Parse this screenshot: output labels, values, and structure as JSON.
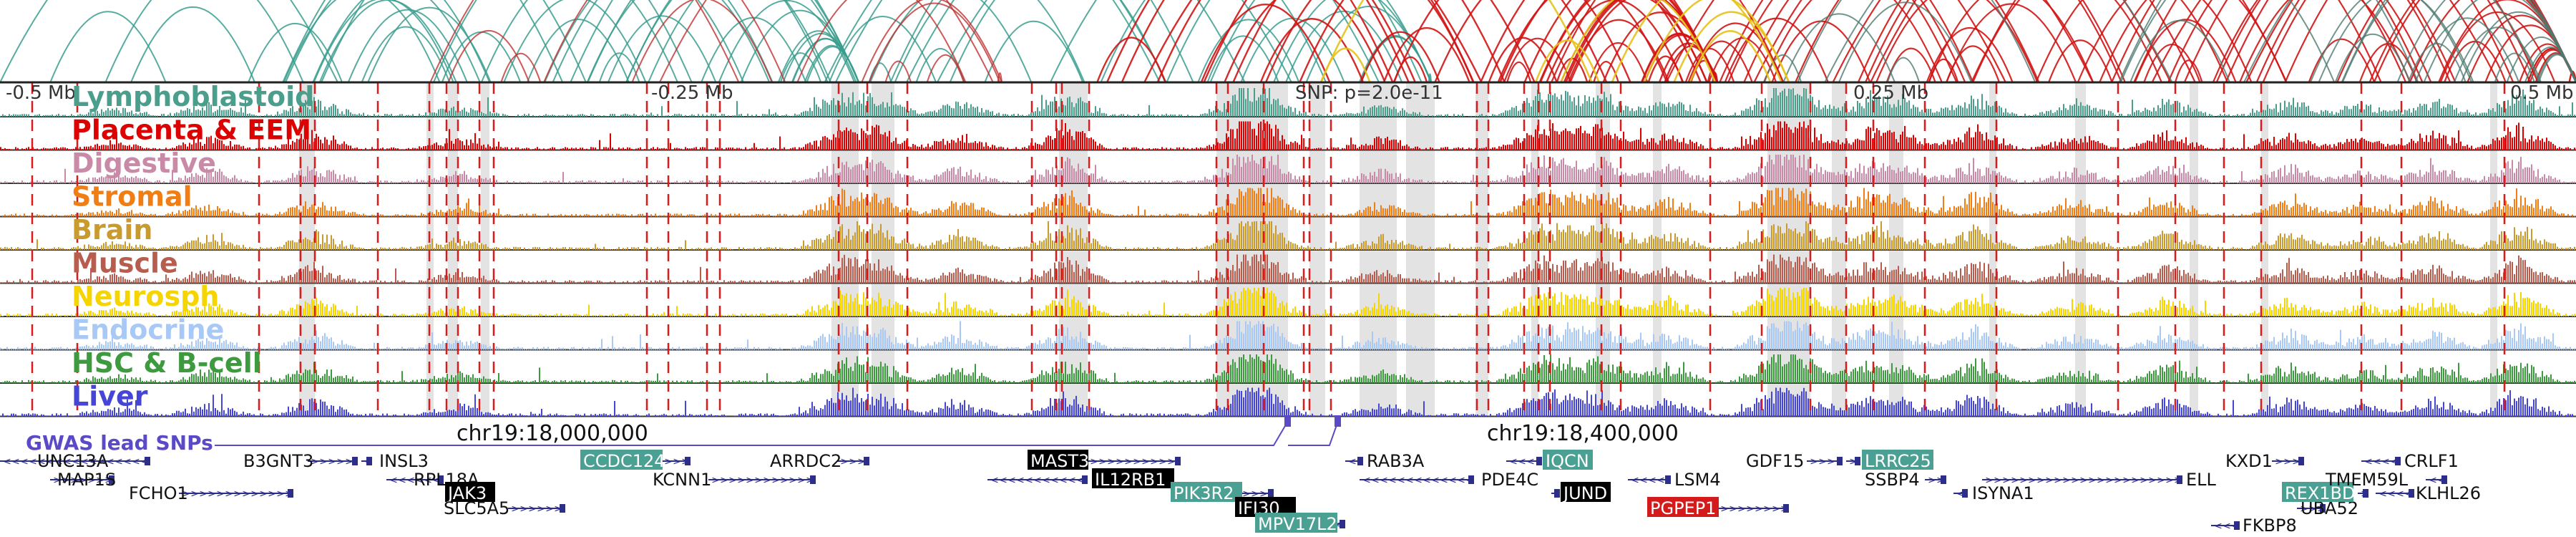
{
  "scale": {
    "left": "-0.5 Mb",
    "mid_left": "-0.25 Mb",
    "center": "SNP: p=2.0e-11",
    "mid_right": "0.25 Mb",
    "right": "0.5 Mb"
  },
  "tracks": [
    {
      "label": "Lymphoblastoid",
      "color": "#4a9e8b"
    },
    {
      "label": "Placenta & EEM",
      "color": "#dd0000"
    },
    {
      "label": "Digestive",
      "color": "#c98aa8"
    },
    {
      "label": "Stromal",
      "color": "#f07e14"
    },
    {
      "label": "Brain",
      "color": "#c99a2e"
    },
    {
      "label": "Muscle",
      "color": "#b85c4e"
    },
    {
      "label": "Neurosph",
      "color": "#f5d400"
    },
    {
      "label": "Endocrine",
      "color": "#a8c8f5"
    },
    {
      "label": "HSC & B-cell",
      "color": "#3e9a3e"
    },
    {
      "label": "Liver",
      "color": "#4545d6"
    }
  ],
  "gwas": {
    "label": "GWAS lead SNPs",
    "color": "#5a4ac8"
  },
  "coords": {
    "left": "chr19:18,000,000",
    "right": "chr19:18,400,000"
  },
  "genes": [
    {
      "name": "UNC13A"
    },
    {
      "name": "MAP1S"
    },
    {
      "name": "FCHO1"
    },
    {
      "name": "B3GNT3"
    },
    {
      "name": "INSL3"
    },
    {
      "name": "RPL18A"
    },
    {
      "name": "JAK3",
      "highlight": "black"
    },
    {
      "name": "SLC5A5"
    },
    {
      "name": "CCDC124",
      "highlight": "teal"
    },
    {
      "name": "KCNN1"
    },
    {
      "name": "ARRDC2"
    },
    {
      "name": "MAST3",
      "highlight": "black"
    },
    {
      "name": "IL12RB1",
      "highlight": "black"
    },
    {
      "name": "PIK3R2",
      "highlight": "teal"
    },
    {
      "name": "IFI30",
      "highlight": "black"
    },
    {
      "name": "MPV17L2",
      "highlight": "teal"
    },
    {
      "name": "RAB3A"
    },
    {
      "name": "PDE4C"
    },
    {
      "name": "IQCN",
      "highlight": "teal"
    },
    {
      "name": "JUND",
      "highlight": "black"
    },
    {
      "name": "LSM4"
    },
    {
      "name": "PGPEP1",
      "highlight": "red"
    },
    {
      "name": "GDF15"
    },
    {
      "name": "LRRC25",
      "highlight": "teal"
    },
    {
      "name": "SSBP4"
    },
    {
      "name": "ISYNA1"
    },
    {
      "name": "ELL"
    },
    {
      "name": "KXD1"
    },
    {
      "name": "CRLF1"
    },
    {
      "name": "UBA52"
    },
    {
      "name": "REX1BD",
      "highlight": "teal"
    },
    {
      "name": "TMEM59L"
    },
    {
      "name": "KLHL26"
    },
    {
      "name": "FKBP8"
    }
  ],
  "arc_colors": {
    "teal": "#3a9e8e",
    "red": "#d21414",
    "yellow": "#e6c21a"
  }
}
